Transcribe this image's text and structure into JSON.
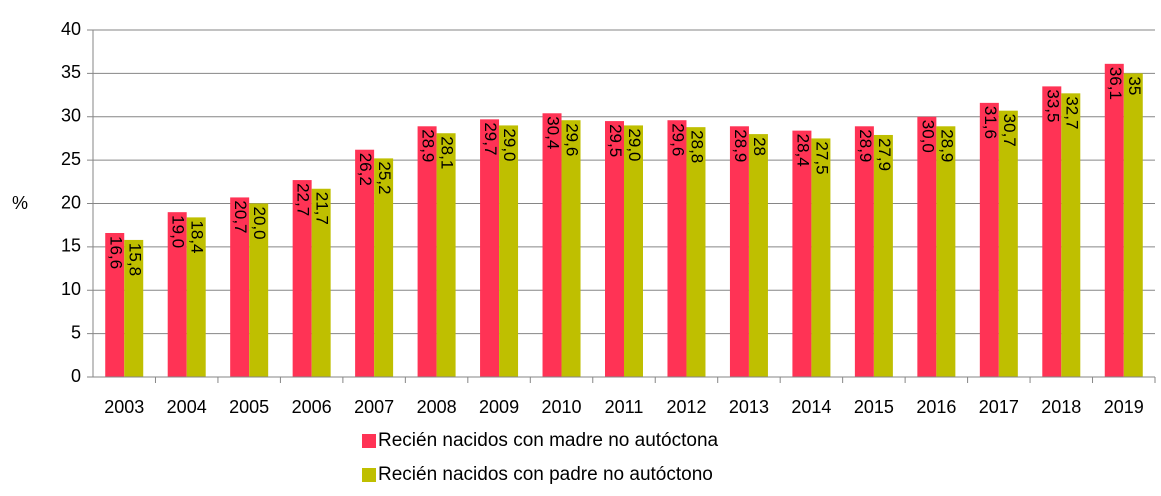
{
  "chart_data": {
    "type": "bar",
    "y_label": "%",
    "categories": [
      "2003",
      "2004",
      "2005",
      "2006",
      "2007",
      "2008",
      "2009",
      "2010",
      "2011",
      "2012",
      "2013",
      "2014",
      "2015",
      "2016",
      "2017",
      "2018",
      "2019"
    ],
    "series": [
      {
        "name": "Recién nacidos con madre no autóctona",
        "color": "#ff3355",
        "values": [
          16.6,
          19.0,
          20.7,
          22.7,
          26.2,
          28.9,
          29.7,
          30.4,
          29.5,
          29.6,
          28.9,
          28.4,
          28.9,
          30.0,
          31.6,
          33.5,
          36.1
        ],
        "value_labels": [
          "16,6",
          "19,0",
          "20,7",
          "22,7",
          "26,2",
          "28,9",
          "29,7",
          "30,4",
          "29,5",
          "29,6",
          "28,9",
          "28,4",
          "28,9",
          "30,0",
          "31,6",
          "33,5",
          "36,1"
        ]
      },
      {
        "name": "Recién nacidos con padre no autóctono",
        "color": "#bfbf00",
        "values": [
          15.8,
          18.4,
          20.0,
          21.7,
          25.2,
          28.1,
          29.0,
          29.6,
          29.0,
          28.8,
          28,
          27.5,
          27.9,
          28.9,
          30.7,
          32.7,
          35
        ],
        "value_labels": [
          "15,8",
          "18,4",
          "20,0",
          "21,7",
          "25,2",
          "28,1",
          "29,0",
          "29,6",
          "29,0",
          "28,8",
          "28",
          "27,5",
          "27,9",
          "28,9",
          "30,7",
          "32,7",
          "35"
        ]
      }
    ],
    "ylim": [
      0,
      40
    ],
    "yticks": [
      0,
      5,
      10,
      15,
      20,
      25,
      30,
      35,
      40
    ],
    "grid": true,
    "legend": "bottom"
  }
}
